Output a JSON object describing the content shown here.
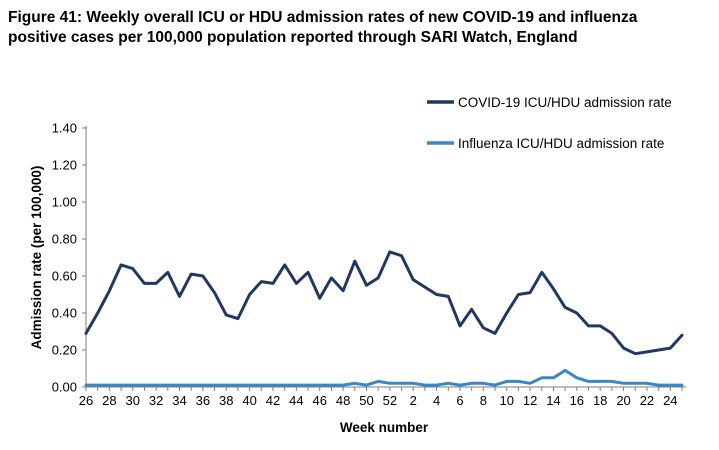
{
  "title": "Figure 41: Weekly overall ICU or HDU admission rates of new COVID-19 and influenza positive cases per 100,000 population reported through SARI Watch, England",
  "chart_data": {
    "type": "line",
    "title": "Figure 41: Weekly overall ICU or HDU admission rates of new COVID-19 and influenza positive cases per 100,000 population reported through SARI Watch, England",
    "xlabel": "Week number",
    "ylabel": "Admission rate (per 100,000)",
    "ylim": [
      0,
      1.4
    ],
    "yticks": [
      "0.00",
      "0.20",
      "0.40",
      "0.60",
      "0.80",
      "1.00",
      "1.20",
      "1.40"
    ],
    "x": [
      "26",
      "27",
      "28",
      "29",
      "30",
      "31",
      "32",
      "33",
      "34",
      "35",
      "36",
      "37",
      "38",
      "39",
      "40",
      "41",
      "42",
      "43",
      "44",
      "45",
      "46",
      "47",
      "48",
      "49",
      "50",
      "51",
      "52",
      "1",
      "2",
      "3",
      "4",
      "5",
      "6",
      "7",
      "8",
      "9",
      "10",
      "11",
      "12",
      "13",
      "14",
      "15",
      "16",
      "17",
      "18",
      "19",
      "20",
      "21",
      "22",
      "23",
      "24",
      "25"
    ],
    "x_tick_labels": [
      "26",
      "28",
      "30",
      "32",
      "34",
      "36",
      "38",
      "40",
      "42",
      "44",
      "46",
      "48",
      "50",
      "52",
      "2",
      "4",
      "6",
      "8",
      "10",
      "12",
      "14",
      "16",
      "18",
      "20",
      "22",
      "24"
    ],
    "grid": false,
    "legend_position": "top-right",
    "series": [
      {
        "name": "COVID-19 ICU/HDU admission rate",
        "color": "#1f3864",
        "values": [
          0.29,
          0.4,
          0.52,
          0.66,
          0.64,
          0.56,
          0.56,
          0.62,
          0.49,
          0.61,
          0.6,
          0.51,
          0.39,
          0.37,
          0.5,
          0.57,
          0.56,
          0.66,
          0.56,
          0.62,
          0.48,
          0.59,
          0.52,
          0.68,
          0.55,
          0.59,
          0.73,
          0.71,
          0.58,
          0.54,
          0.5,
          0.49,
          0.33,
          0.42,
          0.32,
          0.29,
          0.4,
          0.5,
          0.51,
          0.62,
          0.53,
          0.43,
          0.4,
          0.33,
          0.33,
          0.29,
          0.21,
          0.18,
          0.19,
          0.2,
          0.21,
          0.28
        ]
      },
      {
        "name": "Influenza ICU/HDU admission rate",
        "color": "#3a87c8",
        "values": [
          0.01,
          0.01,
          0.01,
          0.01,
          0.01,
          0.01,
          0.01,
          0.01,
          0.01,
          0.01,
          0.01,
          0.01,
          0.01,
          0.01,
          0.01,
          0.01,
          0.01,
          0.01,
          0.01,
          0.01,
          0.01,
          0.01,
          0.01,
          0.02,
          0.01,
          0.03,
          0.02,
          0.02,
          0.02,
          0.01,
          0.01,
          0.02,
          0.01,
          0.02,
          0.02,
          0.01,
          0.03,
          0.03,
          0.02,
          0.05,
          0.05,
          0.09,
          0.05,
          0.03,
          0.03,
          0.03,
          0.02,
          0.02,
          0.02,
          0.01,
          0.01,
          0.01
        ]
      }
    ]
  }
}
